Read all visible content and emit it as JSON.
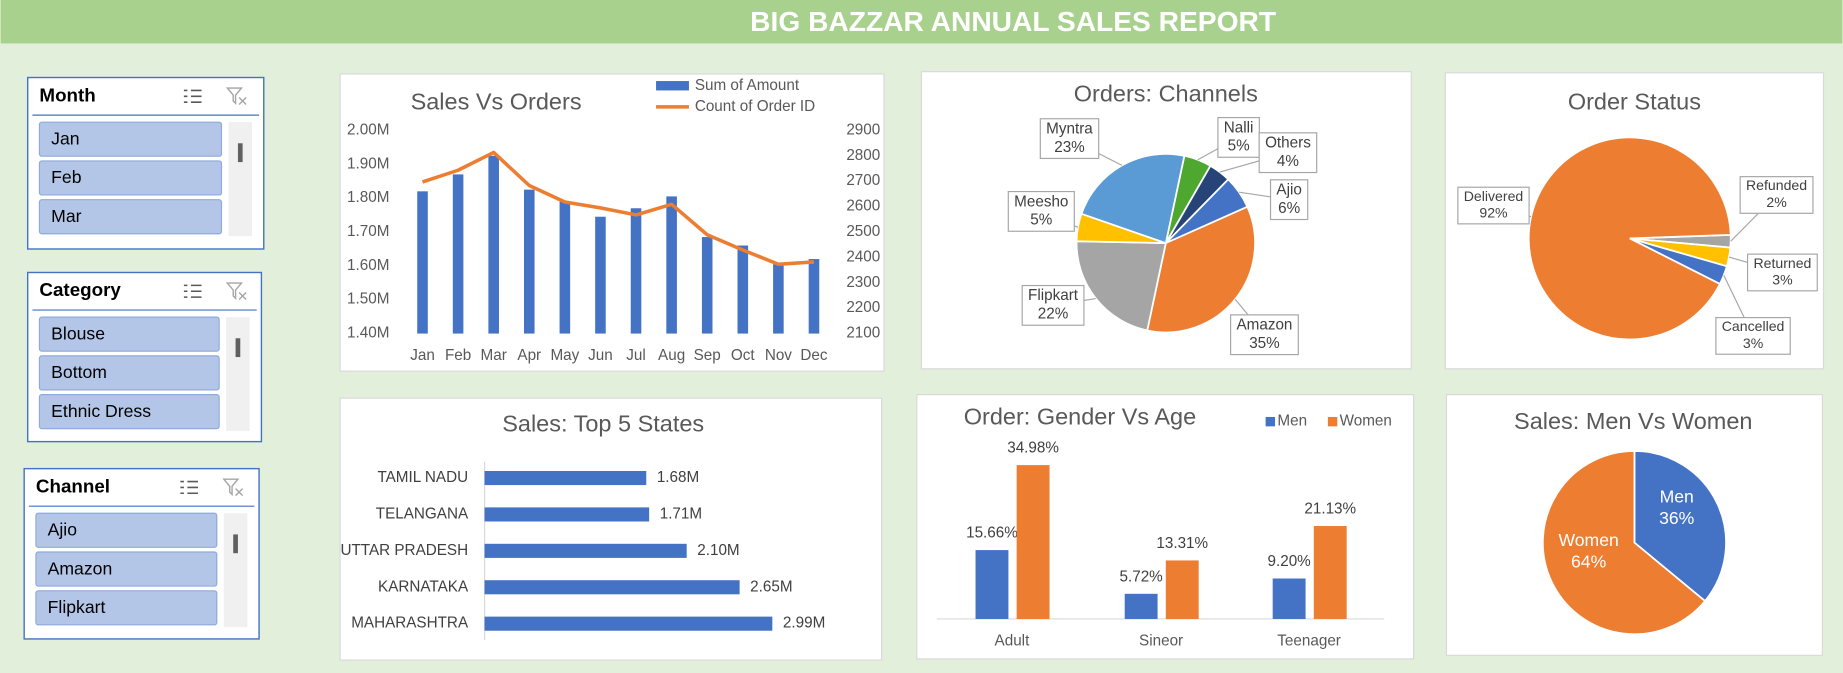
{
  "header": {
    "title": "BIG BAZZAR ANNUAL SALES REPORT"
  },
  "slicers": [
    {
      "title": "Month",
      "items": [
        "Jan",
        "Feb",
        "Mar"
      ]
    },
    {
      "title": "Category",
      "items": [
        "Blouse",
        "Bottom",
        "Ethnic Dress"
      ]
    },
    {
      "title": "Channel",
      "items": [
        "Ajio",
        "Amazon",
        "Flipkart"
      ]
    }
  ],
  "chart_data": [
    {
      "type": "combo",
      "title": "Sales Vs Orders",
      "categories": [
        "Jan",
        "Feb",
        "Mar",
        "Apr",
        "May",
        "Jun",
        "Jul",
        "Aug",
        "Sep",
        "Oct",
        "Nov",
        "Dec"
      ],
      "series": [
        {
          "name": "Sum of Amount",
          "type": "bar",
          "color": "#4472c4",
          "values": [
            1820000,
            1870000,
            1925000,
            1825000,
            1790000,
            1745000,
            1770000,
            1805000,
            1685000,
            1660000,
            1605000,
            1620000
          ]
        },
        {
          "name": "Count of Order ID",
          "type": "line",
          "axis": "y2",
          "color": "#ed7d31",
          "values": [
            2697,
            2743,
            2813,
            2683,
            2618,
            2595,
            2567,
            2609,
            2489,
            2429,
            2373,
            2382
          ]
        }
      ],
      "ylim": [
        1400000,
        2000000
      ],
      "yticks": [
        {
          "value": 1400000,
          "label": "1.40M"
        },
        {
          "value": 1500000,
          "label": "1.50M"
        },
        {
          "value": 1600000,
          "label": "1.60M"
        },
        {
          "value": 1700000,
          "label": "1.70M"
        },
        {
          "value": 1800000,
          "label": "1.80M"
        },
        {
          "value": 1900000,
          "label": "1.90M"
        },
        {
          "value": 2000000,
          "label": "2.00M"
        }
      ],
      "y2lim": [
        2100,
        2900
      ],
      "y2ticks": [
        2100,
        2200,
        2300,
        2400,
        2500,
        2600,
        2700,
        2800,
        2900
      ],
      "legend": "top-right"
    },
    {
      "type": "pie",
      "title": "Orders: Channels",
      "categories": [
        "Nalli",
        "Others",
        "Ajio",
        "Amazon",
        "Flipkart",
        "Meesho",
        "Myntra"
      ],
      "values": [
        5,
        4,
        6,
        35,
        22,
        5,
        23
      ],
      "value_labels": [
        "5%",
        "4%",
        "6%",
        "35%",
        "22%",
        "5%",
        "23%"
      ],
      "colors": [
        "#4ea72e",
        "#264478",
        "#4472c4",
        "#ed7d31",
        "#a5a5a5",
        "#ffc000",
        "#5b9bd5"
      ]
    },
    {
      "type": "pie",
      "title": "Order Status",
      "categories": [
        "Refunded",
        "Returned",
        "Cancelled",
        "Delivered"
      ],
      "values": [
        2,
        3,
        3,
        92
      ],
      "value_labels": [
        "2%",
        "3%",
        "3%",
        "92%"
      ],
      "colors": [
        "#a5a5a5",
        "#ffc000",
        "#4472c4",
        "#ed7d31"
      ]
    },
    {
      "type": "hbar",
      "title": "Sales: Top 5 States",
      "categories": [
        "TAMIL NADU",
        "TELANGANA",
        "UTTAR PRADESH",
        "KARNATAKA",
        "MAHARASHTRA"
      ],
      "values": [
        1.68,
        1.71,
        2.1,
        2.65,
        2.99
      ],
      "value_labels": [
        "1.68M",
        "1.71M",
        "2.10M",
        "2.65M",
        "2.99M"
      ],
      "color": "#4472c4"
    },
    {
      "type": "bar",
      "title": "Order: Gender Vs Age",
      "categories": [
        "Adult",
        "Sineor",
        "Teenager"
      ],
      "series": [
        {
          "name": "Men",
          "color": "#4472c4",
          "values": [
            15.66,
            5.72,
            9.2
          ],
          "value_labels": [
            "15.66%",
            "5.72%",
            "9.20%"
          ]
        },
        {
          "name": "Women",
          "color": "#ed7d31",
          "values": [
            34.98,
            13.31,
            21.13
          ],
          "value_labels": [
            "34.98%",
            "13.31%",
            "21.13%"
          ]
        }
      ],
      "legend": "top-right"
    },
    {
      "type": "pie",
      "title": "Sales: Men Vs Women",
      "categories": [
        "Men",
        "Women"
      ],
      "values": [
        36,
        64
      ],
      "value_labels": [
        "36%",
        "64%"
      ],
      "colors": [
        "#4472c4",
        "#ed7d31"
      ]
    }
  ]
}
